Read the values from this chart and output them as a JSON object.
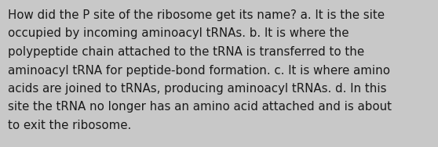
{
  "lines": [
    "How did the P site of the ribosome get its name? a. It is the site",
    "occupied by incoming aminoacyl tRNAs. b. It is where the",
    "polypeptide chain attached to the tRNA is transferred to the",
    "aminoacyl tRNA for peptide-bond formation. c. It is where amino",
    "acids are joined to tRNAs, producing aminoacyl tRNAs. d. In this",
    "site the tRNA no longer has an amino acid attached and is about",
    "to exit the ribosome."
  ],
  "background_color": "#c8c8c8",
  "text_color": "#1a1a1a",
  "font_size": 10.8,
  "fig_width": 5.58,
  "fig_height": 1.88,
  "dpi": 100
}
